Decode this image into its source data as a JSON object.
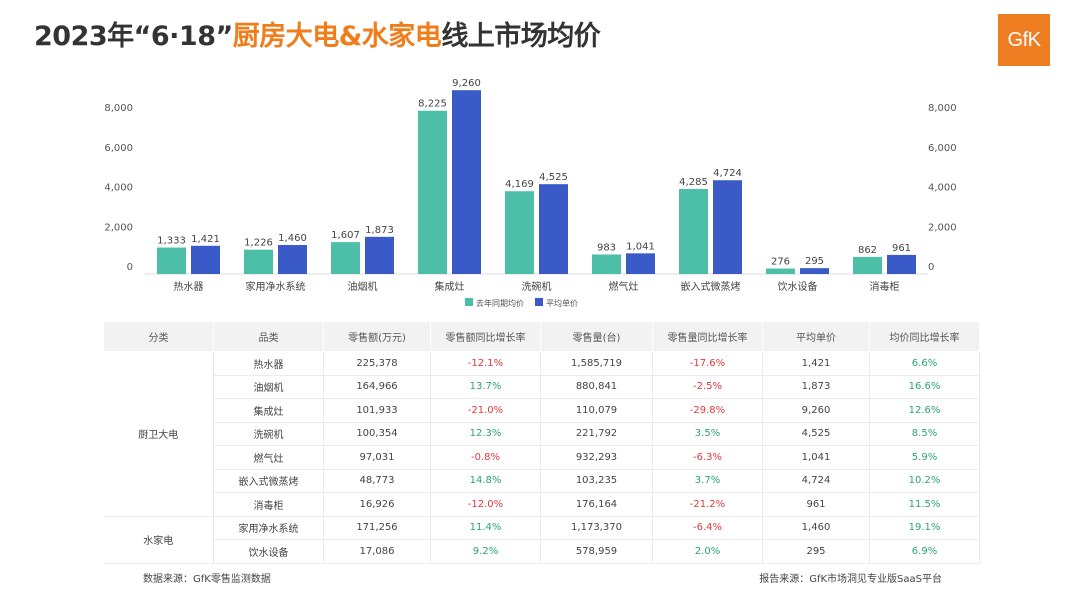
{
  "title": {
    "pre": "2023年“6·18”",
    "highlight": "厨房大电&水家电",
    "post": "线上市场均价"
  },
  "logo": "GfK",
  "chart_data": {
    "type": "bar",
    "categories": [
      "热水器",
      "家用净水系统",
      "油烟机",
      "集成灶",
      "洗碗机",
      "燃气灶",
      "嵌入式微蒸烤",
      "饮水设备",
      "消毒柜"
    ],
    "series": [
      {
        "name": "去年同期均价",
        "color": "#4dbfa8",
        "values": [
          1333,
          1226,
          1607,
          8225,
          4169,
          983,
          4285,
          276,
          862
        ]
      },
      {
        "name": "平均单价",
        "color": "#3a5bc7",
        "values": [
          1421,
          1460,
          1873,
          9260,
          4525,
          1041,
          4724,
          295,
          961
        ]
      }
    ],
    "y_ticks": [
      "0",
      "2,000",
      "4,000",
      "6,000",
      "8,000"
    ],
    "ylim": [
      0,
      10000
    ],
    "legend_position": "bottom"
  },
  "table": {
    "headers": [
      "分类",
      "品类",
      "零售额(万元)",
      "零售额同比增长率",
      "零售量(台)",
      "零售量同比增长率",
      "平均单价",
      "均价同比增长率"
    ],
    "groups": [
      {
        "name": "厨卫大电",
        "rows": [
          [
            "热水器",
            "225,378",
            "-12.1%",
            "1,585,719",
            "-17.6%",
            "1,421",
            "6.6%"
          ],
          [
            "油烟机",
            "164,966",
            "13.7%",
            "880,841",
            "-2.5%",
            "1,873",
            "16.6%"
          ],
          [
            "集成灶",
            "101,933",
            "-21.0%",
            "110,079",
            "-29.8%",
            "9,260",
            "12.6%"
          ],
          [
            "洗碗机",
            "100,354",
            "12.3%",
            "221,792",
            "3.5%",
            "4,525",
            "8.5%"
          ],
          [
            "燃气灶",
            "97,031",
            "-0.8%",
            "932,293",
            "-6.3%",
            "1,041",
            "5.9%"
          ],
          [
            "嵌入式微蒸烤",
            "48,773",
            "14.8%",
            "103,235",
            "3.7%",
            "4,724",
            "10.2%"
          ],
          [
            "消毒柜",
            "16,926",
            "-12.0%",
            "176,164",
            "-21.2%",
            "961",
            "11.5%"
          ]
        ]
      },
      {
        "name": "水家电",
        "rows": [
          [
            "家用净水系统",
            "171,256",
            "11.4%",
            "1,173,370",
            "-6.4%",
            "1,460",
            "19.1%"
          ],
          [
            "饮水设备",
            "17,086",
            "9.2%",
            "578,959",
            "2.0%",
            "295",
            "6.9%"
          ]
        ]
      }
    ]
  },
  "footer": {
    "left": "数据来源：GfK零售监测数据",
    "right": "报告来源：GfK市场洞见专业版SaaS平台"
  }
}
